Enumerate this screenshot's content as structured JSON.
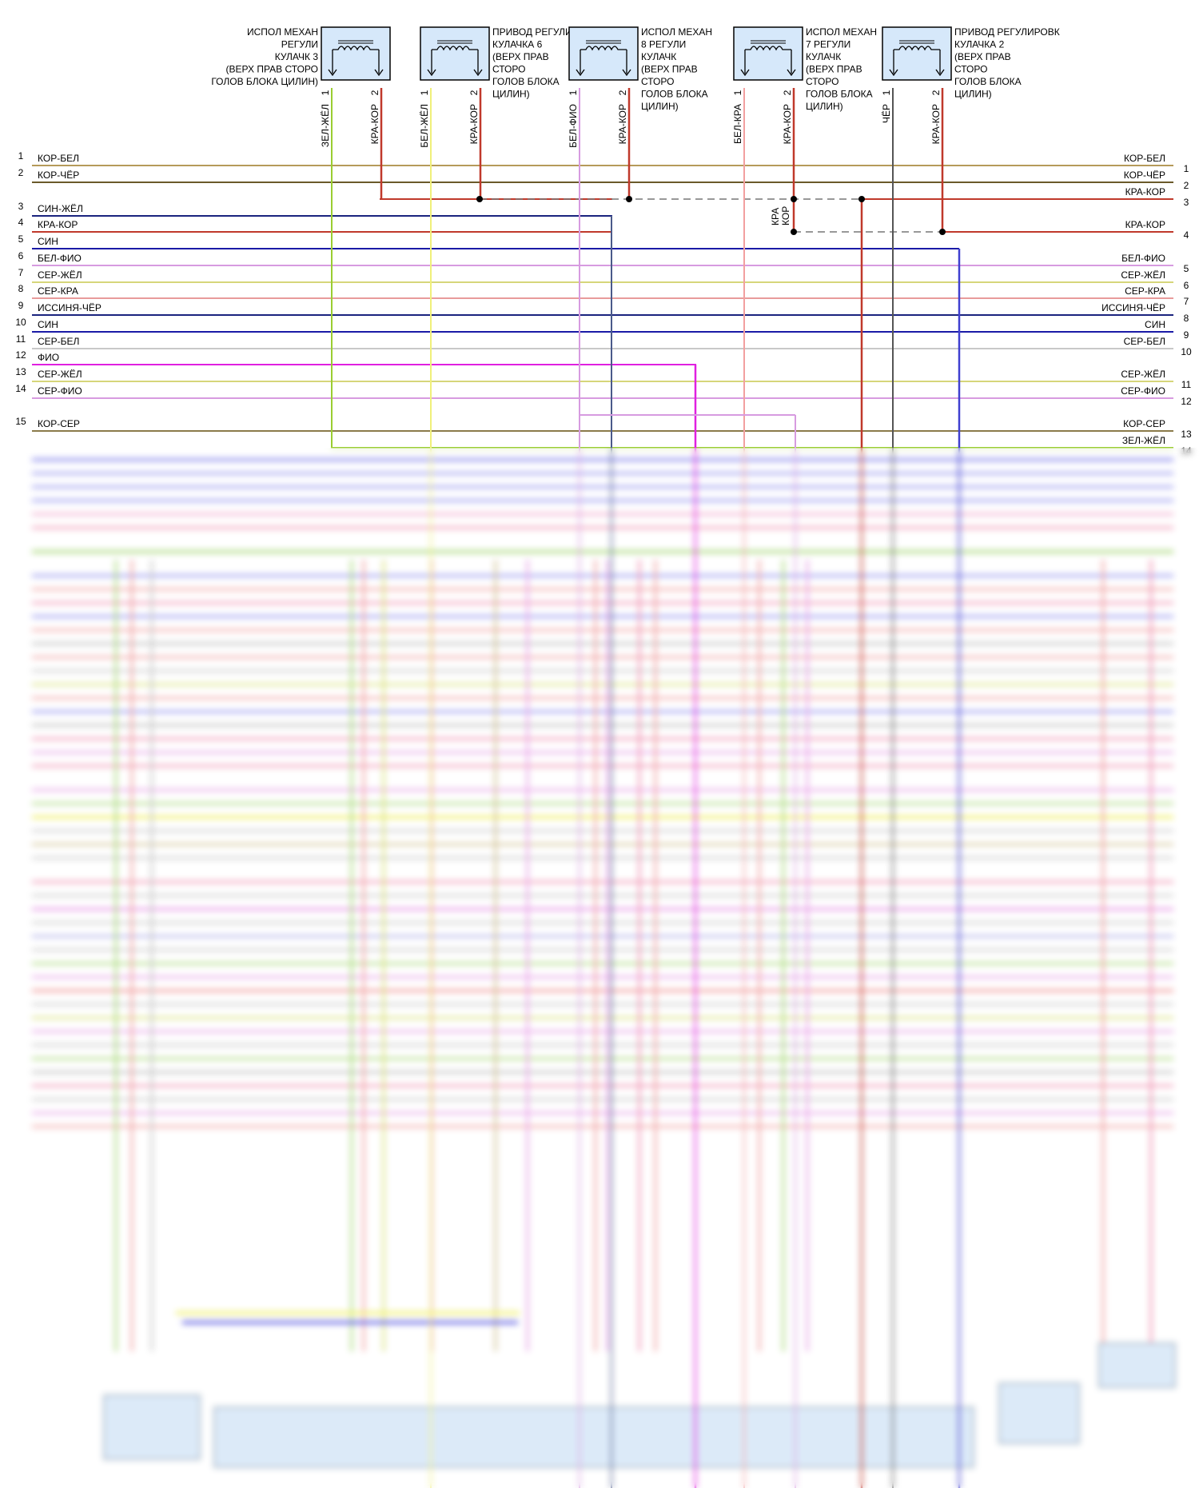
{
  "actuators": [
    {
      "id": "a1",
      "label_lines": [
        "ИСПОЛ МЕХАН",
        "РЕГУЛИ",
        "КУЛАЧК 3",
        "(ВЕРХ ПРАВ СТОРО",
        "ГОЛОВ БЛОКА ЦИЛИН)"
      ],
      "label_side": "left",
      "pins": [
        {
          "num": "1",
          "wire": "ЗЕЛ-ЖЁЛ",
          "color": "#9acd32"
        },
        {
          "num": "2",
          "wire": "КРА-КОР",
          "color": "#c0392b"
        }
      ]
    },
    {
      "id": "a2",
      "label_lines": [
        "ПРИВОД РЕГУЛИРОВК",
        "КУЛАЧКА 6",
        "",
        "(ВЕРХ ПРАВ",
        "СТОРО",
        "ГОЛОВ БЛОКА",
        "ЦИЛИН)"
      ],
      "label_side": "right",
      "pins": [
        {
          "num": "1",
          "wire": "БЕЛ-ЖЁЛ",
          "color": "#f0f07a"
        },
        {
          "num": "2",
          "wire": "КРА-КОР",
          "color": "#c0392b"
        }
      ]
    },
    {
      "id": "a3",
      "label_lines": [
        "ИСПОЛ МЕХАН",
        "8 РЕГУЛИ",
        "КУЛАЧК",
        "(ВЕРХ ПРАВ",
        "СТОРО",
        "ГОЛОВ БЛОКА",
        "ЦИЛИН)"
      ],
      "label_side": "right",
      "pins": [
        {
          "num": "1",
          "wire": "БЕЛ-ФИО",
          "color": "#d79be0"
        },
        {
          "num": "2",
          "wire": "КРА-КОР",
          "color": "#c0392b"
        }
      ]
    },
    {
      "id": "a4",
      "label_lines": [
        "ИСПОЛ МЕХАН",
        "7 РЕГУЛИ",
        "КУЛАЧК",
        "(ВЕРХ ПРАВ",
        "СТОРО",
        "ГОЛОВ БЛОКА",
        "ЦИЛИН)"
      ],
      "label_side": "right",
      "pins": [
        {
          "num": "1",
          "wire": "БЕЛ-КРА",
          "color": "#f2a0a0"
        },
        {
          "num": "2",
          "wire": "КРА-КОР",
          "color": "#c0392b"
        }
      ]
    },
    {
      "id": "a5",
      "label_lines": [
        "ПРИВОД РЕГУЛИРОВК",
        "КУЛАЧКА 2",
        "",
        "(ВЕРХ ПРАВ",
        "СТОРО",
        "ГОЛОВ БЛОКА",
        "ЦИЛИН)"
      ],
      "label_side": "right",
      "pins": [
        {
          "num": "1",
          "wire": "ЧЁР",
          "color": "#555555"
        },
        {
          "num": "2",
          "wire": "КРА-КОР",
          "color": "#c0392b"
        }
      ]
    }
  ],
  "splice_label": [
    "КРА",
    "КОР"
  ],
  "bus_rows": [
    {
      "left_num": "1",
      "left_label": "КОР-БЕЛ",
      "right_label": "КОР-БЕЛ",
      "right_num": "1",
      "color": "#b59a5a"
    },
    {
      "left_num": "2",
      "left_label": "КОР-ЧЁР",
      "right_label": "КОР-ЧЁР",
      "right_num": "2",
      "color": "#6b5a2a"
    },
    {
      "left_num": "",
      "left_label": "",
      "right_label": "КРА-КОР",
      "right_num": "3",
      "color": "#c0392b"
    },
    {
      "left_num": "3",
      "left_label": "СИН-ЖЁЛ",
      "right_label": "",
      "right_num": "",
      "color": "#1a237e"
    },
    {
      "left_num": "4",
      "left_label": "КРА-КОР",
      "right_label": "КРА-КОР",
      "right_num": "4",
      "color": "#c0392b"
    },
    {
      "left_num": "5",
      "left_label": "СИН",
      "right_label": "",
      "right_num": "",
      "color": "#1a1aa6"
    },
    {
      "left_num": "6",
      "left_label": "БЕЛ-ФИО",
      "right_label": "БЕЛ-ФИО",
      "right_num": "5",
      "color": "#d79be0"
    },
    {
      "left_num": "7",
      "left_label": "СЕР-ЖЁЛ",
      "right_label": "СЕР-ЖЁЛ",
      "right_num": "6",
      "color": "#d6d67a"
    },
    {
      "left_num": "8",
      "left_label": "СЕР-КРА",
      "right_label": "СЕР-КРА",
      "right_num": "7",
      "color": "#e89b9b"
    },
    {
      "left_num": "9",
      "left_label": "ИССИНЯ-ЧЁР",
      "right_label": "ИССИНЯ-ЧЁР",
      "right_num": "8",
      "color": "#1a237e"
    },
    {
      "left_num": "10",
      "left_label": "СИН",
      "right_label": "СИН",
      "right_num": "9",
      "color": "#1a1aa6"
    },
    {
      "left_num": "11",
      "left_label": "СЕР-БЕЛ",
      "right_label": "СЕР-БЕЛ",
      "right_num": "10",
      "color": "#c8c8c8"
    },
    {
      "left_num": "12",
      "left_label": "ФИО",
      "right_label": "",
      "right_num": "",
      "color": "#e020e0"
    },
    {
      "left_num": "13",
      "left_label": "СЕР-ЖЁЛ",
      "right_label": "СЕР-ЖЁЛ",
      "right_num": "11",
      "color": "#d6d67a"
    },
    {
      "left_num": "14",
      "left_label": "СЕР-ФИО",
      "right_label": "СЕР-ФИО",
      "right_num": "12",
      "color": "#d79be0"
    },
    {
      "left_num": "15",
      "left_label": "КОР-СЕР",
      "right_label": "КОР-СЕР",
      "right_num": "13",
      "color": "#8a7a4a"
    },
    {
      "left_num": "",
      "left_label": "",
      "right_label": "ЗЕЛ-ЖЁЛ",
      "right_num": "14",
      "color": "#9acd32"
    }
  ]
}
